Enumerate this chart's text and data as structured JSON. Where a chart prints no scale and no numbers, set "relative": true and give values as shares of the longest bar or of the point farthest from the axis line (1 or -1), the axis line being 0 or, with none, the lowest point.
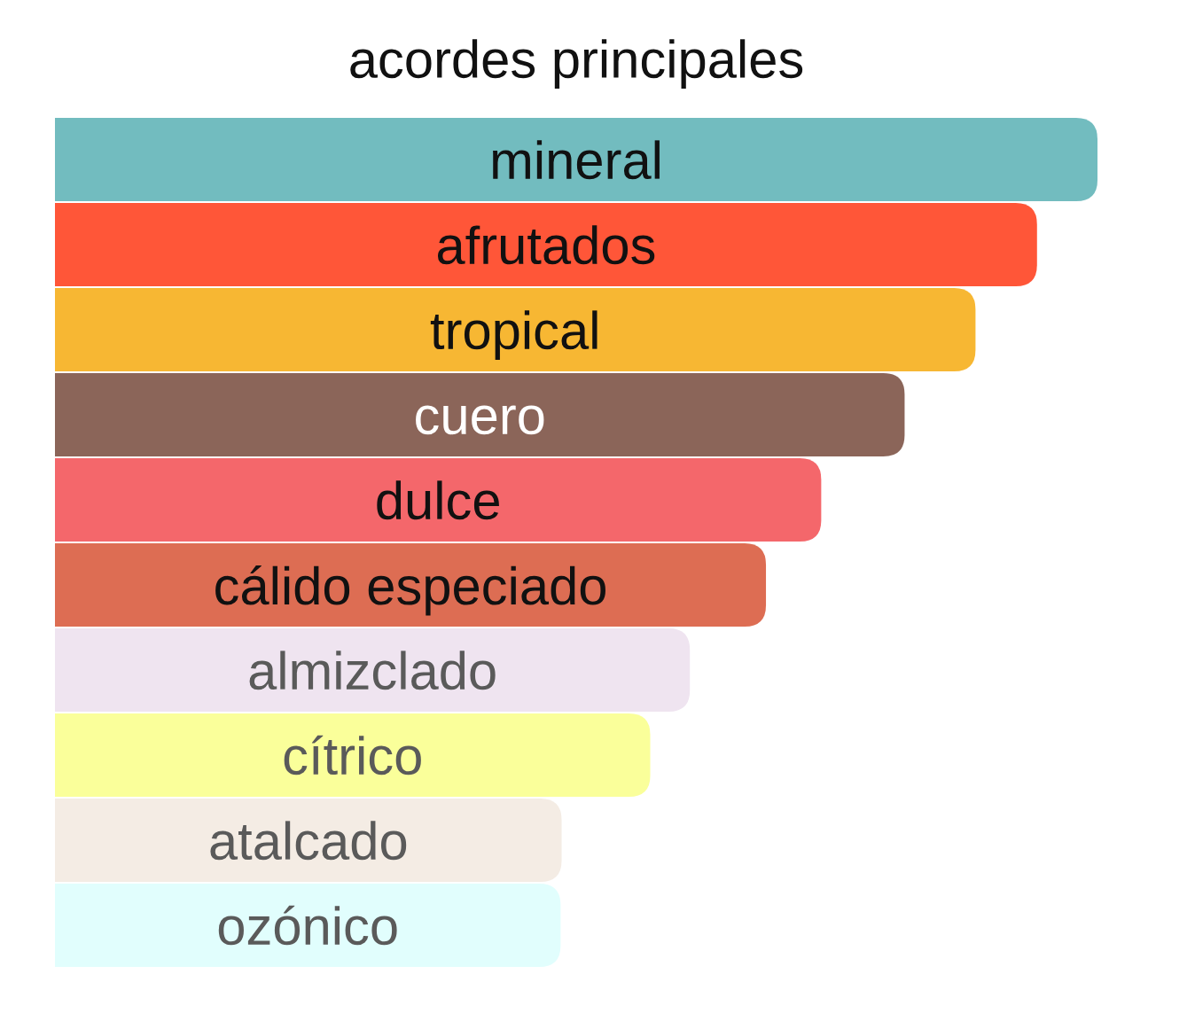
{
  "chart_data": {
    "type": "bar",
    "orientation": "horizontal",
    "relative": true,
    "title": "acordes principales",
    "categories": [
      "mineral",
      "afrutados",
      "tropical",
      "cuero",
      "dulce",
      "cálido especiado",
      "almizclado",
      "cítrico",
      "atalcado",
      "ozónico"
    ],
    "values": [
      1,
      0.942,
      0.883,
      0.815,
      0.735,
      0.682,
      0.609,
      0.571,
      0.486,
      0.485
    ],
    "colors": [
      "#72bcbf",
      "#ff5638",
      "#f7b733",
      "#8b6559",
      "#f4676b",
      "#dd6d53",
      "#efe4f0",
      "#faff9a",
      "#f4ece4",
      "#e1fefd"
    ]
  }
}
